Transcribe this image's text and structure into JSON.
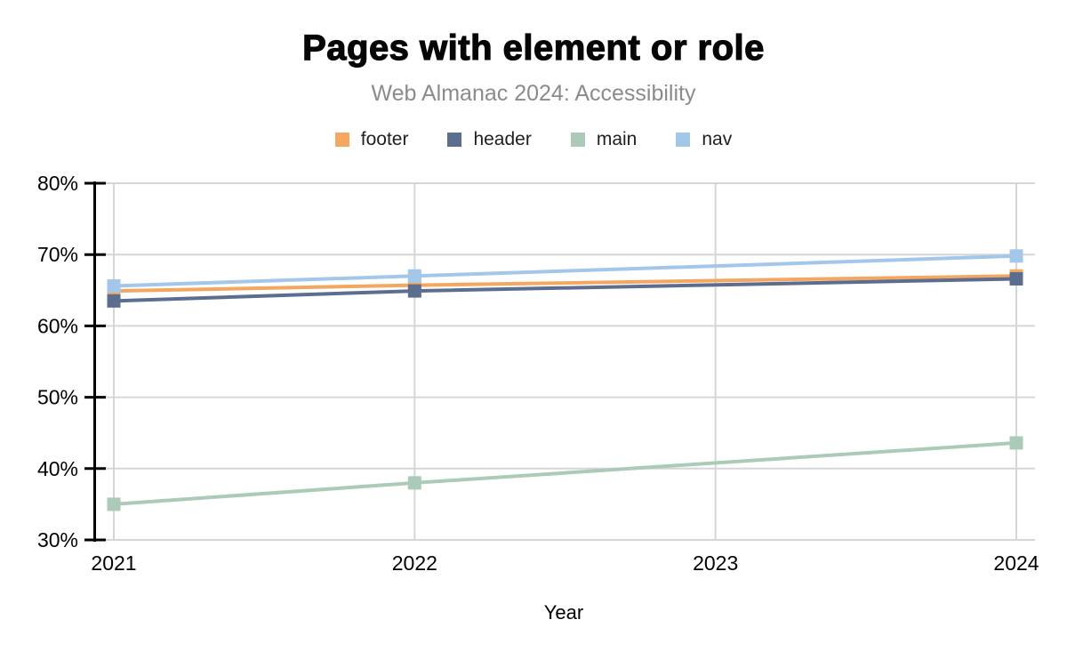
{
  "header": {
    "title": "Pages with element or role",
    "subtitle": "Web Almanac 2024: Accessibility"
  },
  "chart_data": {
    "type": "line",
    "title": "Pages with element or role",
    "subtitle": "Web Almanac 2024: Accessibility",
    "xlabel": "Year",
    "ylabel": "",
    "x": [
      2021,
      2022,
      2024
    ],
    "x_axis_ticks": [
      2021,
      2022,
      2023,
      2024
    ],
    "ylim": [
      30,
      80
    ],
    "y_ticks": [
      30,
      40,
      50,
      60,
      70,
      80
    ],
    "y_tick_labels": [
      "30%",
      "40%",
      "50%",
      "60%",
      "70%",
      "80%"
    ],
    "series": [
      {
        "name": "footer",
        "color": "#F4A760",
        "values": [
          64.9,
          65.7,
          67.0
        ]
      },
      {
        "name": "header",
        "color": "#5C6E90",
        "values": [
          63.5,
          64.9,
          66.6
        ]
      },
      {
        "name": "main",
        "color": "#ABCBB8",
        "values": [
          35.0,
          38.0,
          43.6
        ]
      },
      {
        "name": "nav",
        "color": "#A3C7EB",
        "values": [
          65.6,
          67.0,
          69.8
        ]
      }
    ],
    "legend_position": "top",
    "grid": true,
    "marker": "square",
    "grid_color": "#D6D6D6",
    "axis_color": "#000000",
    "tick_text_color": "#000000"
  }
}
